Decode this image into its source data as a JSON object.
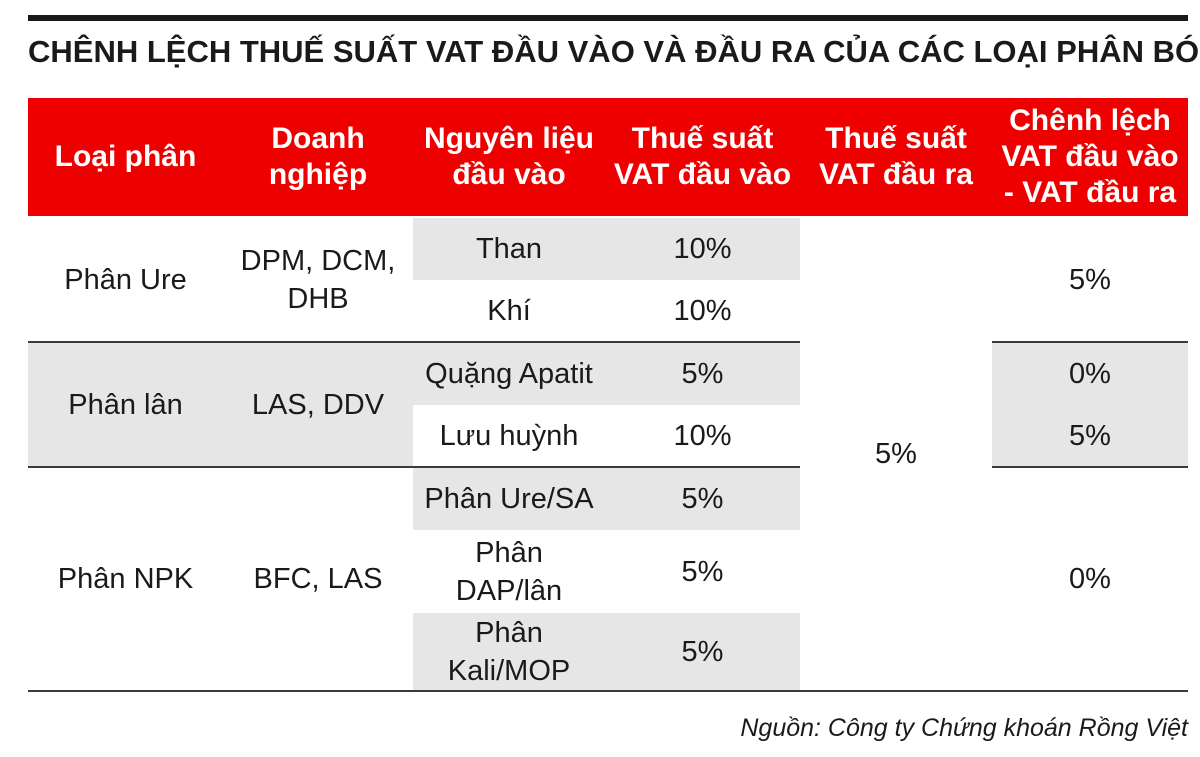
{
  "title": "CHÊNH LỆCH THUẾ SUẤT VAT ĐẦU VÀO VÀ ĐẦU RA CỦA CÁC LOẠI PHÂN BÓN",
  "colors": {
    "header_bg": "#ee0000",
    "header_text": "#ffffff",
    "band": "#e6e6e6"
  },
  "headers": {
    "loai_phan": "Loại phân",
    "doanh_nghiep": "Doanh\nnghiệp",
    "nguyen_lieu": "Nguyên liệu\nđầu vào",
    "vat_vao": "Thuế suất\nVAT đầu vào",
    "vat_ra": "Thuế suất\nVAT đầu ra",
    "chenh_lech": "Chênh lệch\nVAT đầu vào\n- VAT đầu ra"
  },
  "groups": [
    {
      "loai_phan": "Phân Ure",
      "doanh_nghiep": "DPM, DCM,\nDHB",
      "rows": [
        {
          "nguyen_lieu": "Than",
          "vat_vao": "10%"
        },
        {
          "nguyen_lieu": "Khí",
          "vat_vao": "10%"
        }
      ],
      "chenh_lech": "5%"
    },
    {
      "loai_phan": "Phân lân",
      "doanh_nghiep": "LAS, DDV",
      "rows": [
        {
          "nguyen_lieu": "Quặng Apatit",
          "vat_vao": "5%",
          "chenh_lech": "0%"
        },
        {
          "nguyen_lieu": "Lưu huỳnh",
          "vat_vao": "10%",
          "chenh_lech": "5%"
        }
      ]
    },
    {
      "loai_phan": "Phân NPK",
      "doanh_nghiep": "BFC, LAS",
      "rows": [
        {
          "nguyen_lieu": "Phân Ure/SA",
          "vat_vao": "5%"
        },
        {
          "nguyen_lieu": "Phân\nDAP/lân",
          "vat_vao": "5%"
        },
        {
          "nguyen_lieu": "Phân\nKali/MOP",
          "vat_vao": "5%"
        }
      ],
      "chenh_lech": "0%"
    }
  ],
  "vat_dau_ra": "5%",
  "source": "Nguồn: Công ty Chứng khoán Rồng Việt"
}
